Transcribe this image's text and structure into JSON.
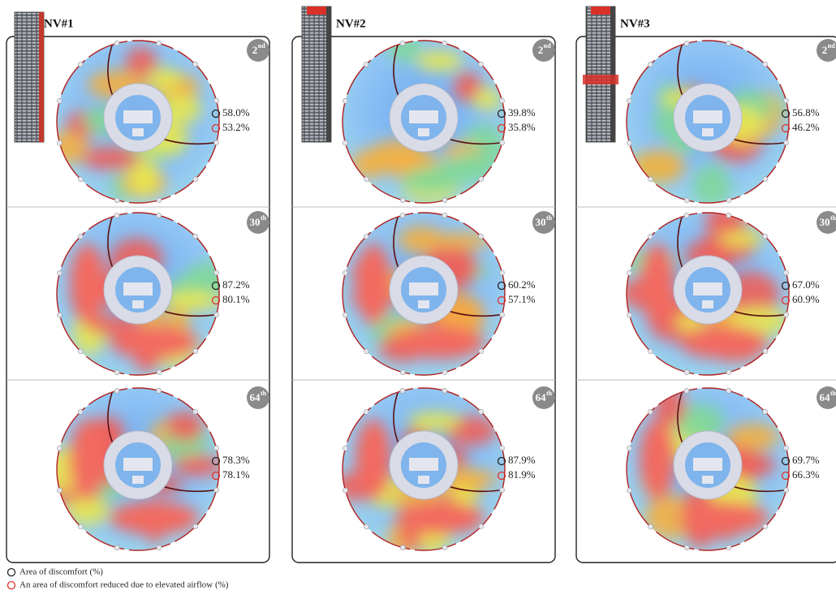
{
  "columns": [
    {
      "title": "NV#1",
      "floors": [
        {
          "number": "2",
          "suffix": "nd",
          "discomfort": "58.0%",
          "reduced": "53.2%"
        },
        {
          "number": "30",
          "suffix": "th",
          "discomfort": "87.2%",
          "reduced": "80.1%"
        },
        {
          "number": "64",
          "suffix": "th",
          "discomfort": "78.3%",
          "reduced": "78.1%"
        }
      ]
    },
    {
      "title": "NV#2",
      "floors": [
        {
          "number": "2",
          "suffix": "nd",
          "discomfort": "39.8%",
          "reduced": "35.8%"
        },
        {
          "number": "30",
          "suffix": "th",
          "discomfort": "60.2%",
          "reduced": "57.1%"
        },
        {
          "number": "64",
          "suffix": "th",
          "discomfort": "87.9%",
          "reduced": "81.9%"
        }
      ]
    },
    {
      "title": "NV#3",
      "floors": [
        {
          "number": "2",
          "suffix": "nd",
          "discomfort": "56.8%",
          "reduced": "46.2%"
        },
        {
          "number": "30",
          "suffix": "th",
          "discomfort": "67.0%",
          "reduced": "60.9%"
        },
        {
          "number": "64",
          "suffix": "th",
          "discomfort": "69.7%",
          "reduced": "66.3%"
        }
      ]
    }
  ],
  "legend": {
    "discomfort": "Area of discomfort (%)",
    "reduced": "An area of discomfort reduced due to elevated airflow (%)"
  }
}
